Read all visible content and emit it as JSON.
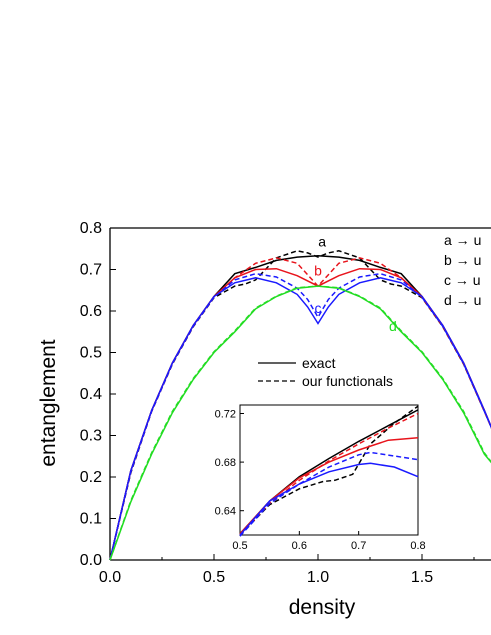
{
  "chart_data": {
    "type": "line",
    "xlabel": "density",
    "ylabel": "entanglement",
    "xlim": [
      0,
      1.85
    ],
    "ylim": [
      0,
      0.8
    ],
    "x_ticks": [
      "0.0",
      "0.5",
      "1.0",
      "1.5"
    ],
    "y_ticks": [
      "0.0",
      "0.1",
      "0.2",
      "0.3",
      "0.4",
      "0.5",
      "0.6",
      "0.7",
      "0.8"
    ],
    "legend": {
      "placement": "center",
      "solid_label": "exact",
      "dashed_label": "our functionals"
    },
    "key_labels": [
      "a → u",
      "b → u",
      "c → u",
      "d → u"
    ],
    "colors": {
      "a": "#000000",
      "b": "#e8141c",
      "c": "#1a1aff",
      "d": "#22dd22"
    },
    "series": [
      {
        "name": "a",
        "style": "solid",
        "x": [
          0,
          0.1,
          0.2,
          0.3,
          0.4,
          0.5,
          0.6,
          0.7,
          0.8,
          0.9,
          1.0,
          1.1,
          1.2,
          1.3,
          1.4,
          1.5,
          1.6,
          1.7,
          1.8,
          1.85
        ],
        "y": [
          0,
          0.215,
          0.36,
          0.475,
          0.565,
          0.635,
          0.69,
          0.705,
          0.722,
          0.73,
          0.733,
          0.73,
          0.722,
          0.705,
          0.69,
          0.635,
          0.565,
          0.475,
          0.36,
          0.3
        ]
      },
      {
        "name": "a",
        "style": "dashed",
        "x": [
          0,
          0.1,
          0.2,
          0.3,
          0.4,
          0.5,
          0.6,
          0.65,
          0.7,
          0.8,
          0.9,
          0.95,
          1.0,
          1.05,
          1.1,
          1.2,
          1.3,
          1.35,
          1.4,
          1.5,
          1.6,
          1.7,
          1.8,
          1.85
        ],
        "y": [
          0,
          0.21,
          0.358,
          0.472,
          0.562,
          0.632,
          0.66,
          0.665,
          0.675,
          0.728,
          0.745,
          0.74,
          0.73,
          0.74,
          0.745,
          0.728,
          0.675,
          0.665,
          0.66,
          0.632,
          0.562,
          0.472,
          0.358,
          0.3
        ]
      },
      {
        "name": "b",
        "style": "solid",
        "x": [
          0,
          0.1,
          0.2,
          0.3,
          0.4,
          0.5,
          0.6,
          0.7,
          0.8,
          0.9,
          1.0,
          1.1,
          1.2,
          1.3,
          1.4,
          1.5,
          1.6,
          1.7,
          1.8,
          1.85
        ],
        "y": [
          0,
          0.215,
          0.36,
          0.475,
          0.565,
          0.635,
          0.68,
          0.7,
          0.702,
          0.685,
          0.66,
          0.685,
          0.702,
          0.7,
          0.68,
          0.635,
          0.565,
          0.475,
          0.36,
          0.3
        ]
      },
      {
        "name": "b",
        "style": "dashed",
        "x": [
          0,
          0.1,
          0.2,
          0.3,
          0.4,
          0.5,
          0.6,
          0.7,
          0.8,
          0.9,
          1.0,
          1.1,
          1.2,
          1.3,
          1.4,
          1.5,
          1.6,
          1.7,
          1.8,
          1.85
        ],
        "y": [
          0,
          0.212,
          0.358,
          0.473,
          0.563,
          0.633,
          0.68,
          0.715,
          0.728,
          0.715,
          0.66,
          0.715,
          0.728,
          0.715,
          0.68,
          0.633,
          0.563,
          0.473,
          0.358,
          0.3
        ]
      },
      {
        "name": "c",
        "style": "solid",
        "x": [
          0,
          0.1,
          0.2,
          0.3,
          0.4,
          0.5,
          0.6,
          0.7,
          0.8,
          0.9,
          0.95,
          1.0,
          1.05,
          1.1,
          1.2,
          1.3,
          1.4,
          1.5,
          1.6,
          1.7,
          1.8,
          1.85
        ],
        "y": [
          0,
          0.215,
          0.36,
          0.475,
          0.565,
          0.635,
          0.668,
          0.68,
          0.668,
          0.64,
          0.61,
          0.57,
          0.61,
          0.64,
          0.668,
          0.68,
          0.668,
          0.635,
          0.565,
          0.475,
          0.36,
          0.3
        ]
      },
      {
        "name": "c",
        "style": "dashed",
        "x": [
          0,
          0.1,
          0.2,
          0.3,
          0.4,
          0.5,
          0.6,
          0.7,
          0.8,
          0.9,
          0.95,
          1.0,
          1.05,
          1.1,
          1.2,
          1.3,
          1.4,
          1.5,
          1.6,
          1.7,
          1.8,
          1.85
        ],
        "y": [
          0,
          0.212,
          0.358,
          0.473,
          0.563,
          0.633,
          0.675,
          0.69,
          0.682,
          0.655,
          0.628,
          0.585,
          0.628,
          0.655,
          0.682,
          0.69,
          0.675,
          0.633,
          0.563,
          0.473,
          0.358,
          0.3
        ]
      },
      {
        "name": "d",
        "style": "solid",
        "x": [
          0,
          0.1,
          0.2,
          0.3,
          0.4,
          0.5,
          0.6,
          0.7,
          0.8,
          0.9,
          1.0,
          1.1,
          1.2,
          1.3,
          1.4,
          1.5,
          1.6,
          1.7,
          1.8,
          1.85
        ],
        "y": [
          0,
          0.14,
          0.255,
          0.355,
          0.435,
          0.5,
          0.55,
          0.605,
          0.635,
          0.655,
          0.66,
          0.655,
          0.635,
          0.605,
          0.55,
          0.5,
          0.435,
          0.355,
          0.255,
          0.225
        ]
      },
      {
        "name": "d",
        "style": "dashed",
        "x": [
          0,
          0.1,
          0.2,
          0.3,
          0.4,
          0.5,
          0.6,
          0.7,
          0.8,
          0.9,
          1.0,
          1.1,
          1.2,
          1.3,
          1.4,
          1.5,
          1.6,
          1.7,
          1.8,
          1.85
        ],
        "y": [
          0,
          0.143,
          0.258,
          0.358,
          0.437,
          0.502,
          0.552,
          0.607,
          0.636,
          0.656,
          0.66,
          0.656,
          0.636,
          0.607,
          0.552,
          0.502,
          0.437,
          0.358,
          0.258,
          0.225
        ]
      }
    ],
    "curve_labels": [
      {
        "text": "a",
        "x": 1.02,
        "y": 0.755,
        "color_key": "a"
      },
      {
        "text": "b",
        "x": 1.0,
        "y": 0.685,
        "color_key": "b"
      },
      {
        "text": "c",
        "x": 1.0,
        "y": 0.595,
        "color_key": "c"
      },
      {
        "text": "d",
        "x": 1.36,
        "y": 0.552,
        "color_key": "d"
      }
    ],
    "inset": {
      "xlim": [
        0.5,
        0.8
      ],
      "ylim": [
        0.62,
        0.727
      ],
      "x_ticks": [
        "0.5",
        "0.6",
        "0.7",
        "0.8"
      ],
      "y_ticks": [
        "0.64",
        "0.68",
        "0.72"
      ],
      "series": [
        {
          "name": "a",
          "style": "solid",
          "x": [
            0.5,
            0.55,
            0.6,
            0.65,
            0.7,
            0.75,
            0.8
          ],
          "y": [
            0.621,
            0.648,
            0.668,
            0.683,
            0.697,
            0.71,
            0.723
          ]
        },
        {
          "name": "a",
          "style": "dashed",
          "x": [
            0.5,
            0.55,
            0.6,
            0.64,
            0.66,
            0.69,
            0.72,
            0.76,
            0.8
          ],
          "y": [
            0.62,
            0.645,
            0.658,
            0.664,
            0.665,
            0.67,
            0.695,
            0.712,
            0.726
          ]
        },
        {
          "name": "b",
          "style": "solid",
          "x": [
            0.5,
            0.55,
            0.6,
            0.65,
            0.7,
            0.75,
            0.8
          ],
          "y": [
            0.621,
            0.648,
            0.667,
            0.68,
            0.69,
            0.698,
            0.7
          ]
        },
        {
          "name": "b",
          "style": "dashed",
          "x": [
            0.5,
            0.55,
            0.6,
            0.65,
            0.7,
            0.75,
            0.8
          ],
          "y": [
            0.62,
            0.646,
            0.665,
            0.681,
            0.695,
            0.708,
            0.72
          ]
        },
        {
          "name": "c",
          "style": "solid",
          "x": [
            0.5,
            0.55,
            0.6,
            0.65,
            0.7,
            0.72,
            0.76,
            0.8
          ],
          "y": [
            0.62,
            0.648,
            0.662,
            0.672,
            0.678,
            0.679,
            0.676,
            0.668
          ]
        },
        {
          "name": "c",
          "style": "dashed",
          "x": [
            0.5,
            0.55,
            0.6,
            0.65,
            0.7,
            0.72,
            0.76,
            0.8
          ],
          "y": [
            0.619,
            0.646,
            0.662,
            0.676,
            0.686,
            0.688,
            0.685,
            0.682
          ]
        }
      ]
    }
  }
}
